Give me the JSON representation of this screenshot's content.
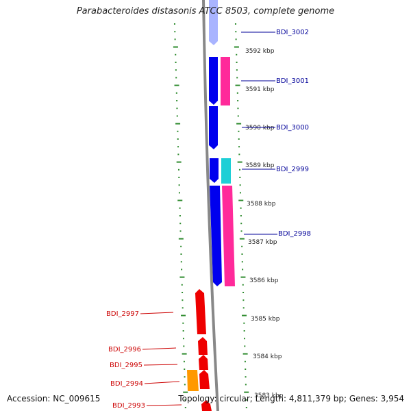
{
  "title": "Parabacteroides distasonis ATCC 8503, complete genome",
  "footer": {
    "accession": "Accession: NC_009615",
    "topology": "Topology: circular; Length: 4,811,379 bp; Genes: 3,954"
  },
  "colors": {
    "backbone": "#888888",
    "tick_dots": "#2e8b2e",
    "gene_right": "#0000ee",
    "gene_right_fade": "#a9b4ff",
    "gene_left": "#ee0000",
    "feature_pink": "#ff2a9a",
    "feature_cyan": "#1ecfd6",
    "feature_orange": "#ff9900",
    "label_right": "#000099",
    "label_left": "#cc0000"
  },
  "kbp_labels": [
    "3592 kbp",
    "3591 kbp",
    "3590 kbp",
    "3589 kbp",
    "3588 kbp",
    "3587 kbp",
    "3586 kbp",
    "3585 kbp",
    "3584 kbp",
    "3583 kbp"
  ],
  "right_genes": [
    "BDI_3002",
    "BDI_3001",
    "BDI_3000",
    "BDI_2999",
    "BDI_2998"
  ],
  "left_genes": [
    "BDI_2997",
    "BDI_2996",
    "BDI_2995",
    "BDI_2994",
    "BDI_2993"
  ]
}
